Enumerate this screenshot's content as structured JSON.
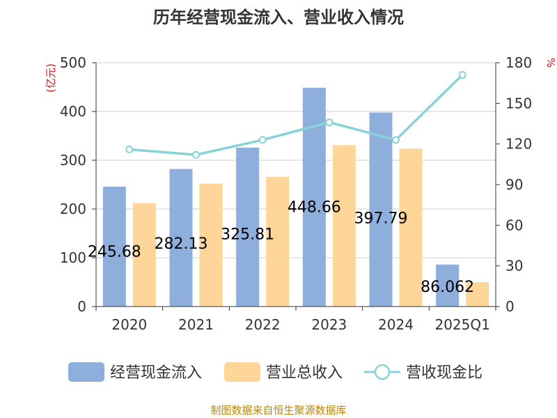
{
  "chart_data": {
    "type": "bar",
    "title": "历年经营现金流入、营业收入情况",
    "categories": [
      "2020",
      "2021",
      "2022",
      "2023",
      "2024",
      "2025Q1"
    ],
    "series": [
      {
        "name": "经营现金流入",
        "type": "bar",
        "axis": "left",
        "color": "#8eaedb",
        "values": [
          245.68,
          282.13,
          325.81,
          448.66,
          397.79,
          86.06
        ],
        "labels": [
          "245.68",
          "282.13",
          "325.81",
          "448.66",
          "397.79",
          "86.062"
        ]
      },
      {
        "name": "营业总收入",
        "type": "bar",
        "axis": "left",
        "color": "#ffd699",
        "values": [
          212,
          252,
          266,
          331,
          324,
          50
        ]
      },
      {
        "name": "营收现金比",
        "type": "line",
        "axis": "right",
        "color": "#88d3d8",
        "values": [
          116,
          112,
          123,
          136,
          123,
          171
        ]
      }
    ],
    "y_left": {
      "unit": "(亿元)",
      "ylim": [
        0,
        500
      ],
      "ticks": [
        "0",
        "100",
        "200",
        "300",
        "400",
        "500"
      ]
    },
    "y_right": {
      "unit": "%",
      "ylim": [
        0,
        180
      ],
      "ticks": [
        "0",
        "30",
        "60",
        "90",
        "120",
        "150",
        "180"
      ]
    },
    "grid": true,
    "legend_position": "bottom"
  },
  "source": "制图数据来自恒生聚源数据库"
}
